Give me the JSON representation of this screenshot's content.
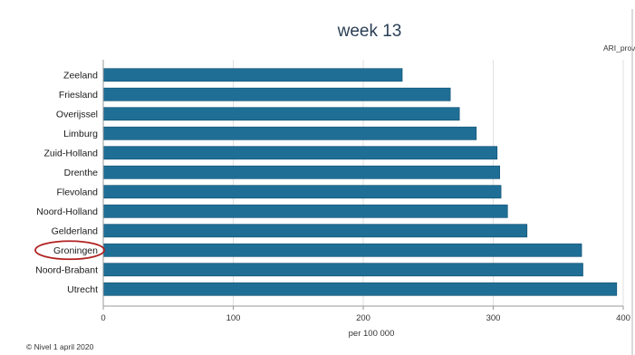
{
  "chart_data": {
    "type": "bar",
    "orientation": "horizontal",
    "title": "week 13",
    "corner_label": "ARI_prov",
    "xlabel": "per 100 000",
    "ylabel": "",
    "xlim": [
      0,
      400
    ],
    "xticks": [
      "0",
      "100",
      "200",
      "300",
      "400"
    ],
    "categories": [
      "Zeeland",
      "Friesland",
      "Overijssel",
      "Limburg",
      "Zuid-Holland",
      "Drenthe",
      "Flevoland",
      "Noord-Holland",
      "Gelderland",
      "Groningen",
      "Noord-Brabant",
      "Utrecht"
    ],
    "values": [
      230,
      267,
      274,
      287,
      303,
      305,
      306,
      311,
      326,
      368,
      369,
      395
    ],
    "highlighted_category": "Groningen",
    "bar_color": "#1f6e96",
    "highlight_color": "#b22222",
    "grid": true
  },
  "footer": {
    "source": "© Nivel 1 april 2020"
  }
}
